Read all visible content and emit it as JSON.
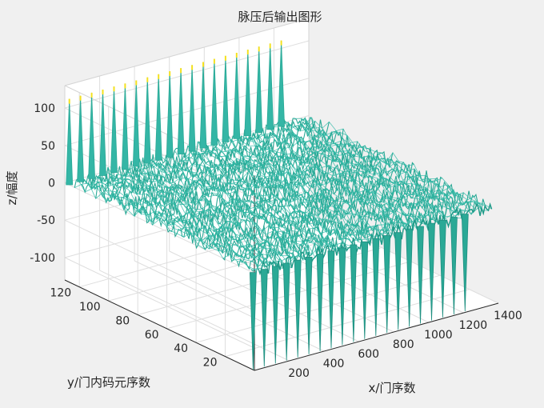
{
  "chart_data": {
    "type": "surface",
    "title": "脉压后输出图形",
    "xlabel": "x/门序数",
    "ylabel": "y/门内码元序数",
    "zlabel": "z/幅度",
    "xlim": [
      0,
      1400
    ],
    "ylim": [
      0,
      130
    ],
    "zlim": [
      -130,
      130
    ],
    "xticks": [
      200,
      400,
      600,
      800,
      1000,
      1200,
      1400
    ],
    "yticks": [
      20,
      40,
      60,
      80,
      100,
      120
    ],
    "zticks": [
      -100,
      -50,
      0,
      50,
      100
    ],
    "zticklabels": [
      "-100",
      "-50",
      "0",
      "50",
      "100"
    ],
    "grid": true,
    "colormap": "parula",
    "surface_color": "#2bb5a3",
    "peak_color": "#f5e11e",
    "noise_level": 15,
    "peaks": {
      "count": 20,
      "first_x": 1,
      "spacing_x": 64,
      "peak_height": 115,
      "trough_depth": -130,
      "y_band": [
        1,
        127
      ]
    }
  }
}
